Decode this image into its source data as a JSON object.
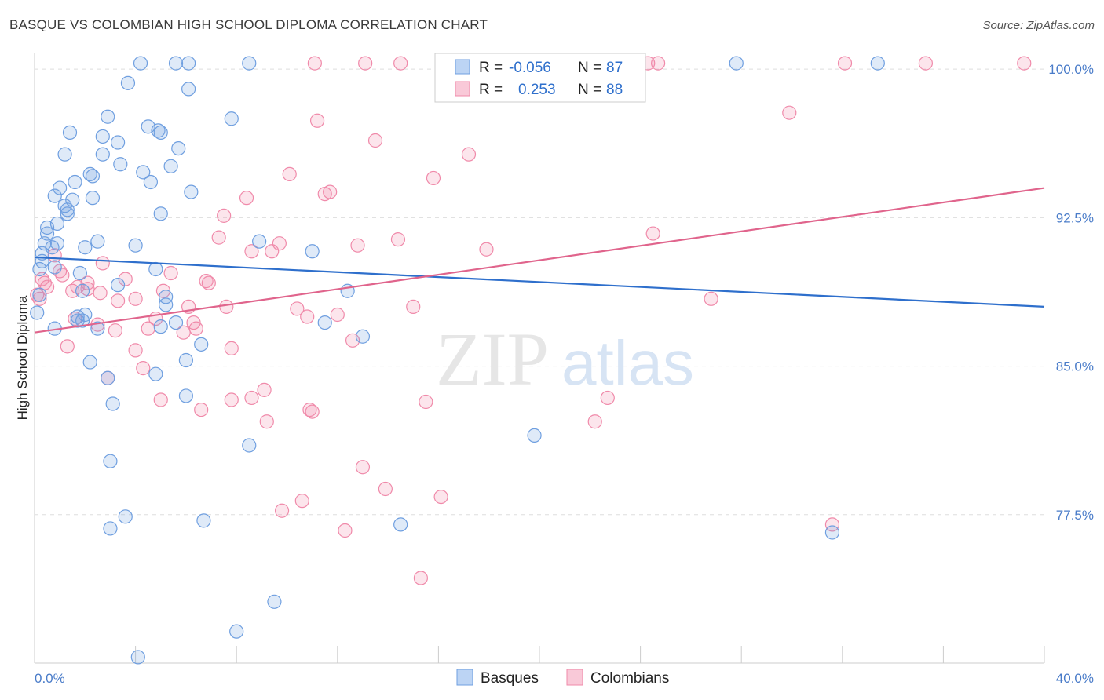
{
  "header": {
    "title": "BASQUE VS COLOMBIAN HIGH SCHOOL DIPLOMA CORRELATION CHART",
    "source": "Source: ZipAtlas.com"
  },
  "watermark": {
    "zip": "ZIP",
    "atlas": "atlas"
  },
  "legend_box": {
    "rows": [
      {
        "r_label": "R =",
        "r_value": "-0.056",
        "n_label": "N =",
        "n_value": "87"
      },
      {
        "r_label": "R =",
        "r_value": "0.253",
        "n_label": "N =",
        "n_value": "88"
      }
    ]
  },
  "chart_data": {
    "type": "scatter",
    "title": "BASQUE VS COLOMBIAN HIGH SCHOOL DIPLOMA CORRELATION CHART",
    "xlabel": "",
    "ylabel": "High School Diploma",
    "xlim": [
      0,
      40
    ],
    "ylim": [
      70,
      100.8
    ],
    "x_tick_labels": [
      {
        "value": 0,
        "label": "0.0%"
      },
      {
        "value": 40,
        "label": "40.0%"
      }
    ],
    "y_ticks": [
      {
        "value": 100.0,
        "label": "100.0%"
      },
      {
        "value": 92.5,
        "label": "92.5%"
      },
      {
        "value": 85.0,
        "label": "85.0%"
      },
      {
        "value": 77.5,
        "label": "77.5%"
      }
    ],
    "grid": "horizontal dashed",
    "legend_position": "bottom-center",
    "colors": {
      "basques": "#6f9fe0",
      "basques_line": "#2e6fcc",
      "colombians": "#f08aaa",
      "colombians_line": "#e0648c"
    },
    "series": [
      {
        "name": "Basques",
        "r": -0.056,
        "n": 87,
        "trend": {
          "x": [
            0,
            40
          ],
          "y": [
            90.5,
            88.0
          ]
        },
        "points": [
          [
            4.2,
            100.3
          ],
          [
            5.6,
            100.3
          ],
          [
            6.1,
            100.3
          ],
          [
            8.5,
            100.3
          ],
          [
            27.8,
            100.3
          ],
          [
            33.4,
            100.3
          ],
          [
            3.7,
            99.3
          ],
          [
            6.1,
            99.0
          ],
          [
            2.9,
            97.6
          ],
          [
            7.8,
            97.5
          ],
          [
            4.5,
            97.1
          ],
          [
            1.4,
            96.8
          ],
          [
            2.7,
            96.6
          ],
          [
            5.0,
            96.8
          ],
          [
            4.9,
            96.9
          ],
          [
            3.3,
            96.3
          ],
          [
            5.7,
            96.0
          ],
          [
            1.2,
            95.7
          ],
          [
            2.7,
            95.7
          ],
          [
            3.4,
            95.2
          ],
          [
            5.4,
            95.1
          ],
          [
            4.3,
            94.8
          ],
          [
            2.2,
            94.7
          ],
          [
            4.6,
            94.3
          ],
          [
            1.6,
            94.3
          ],
          [
            2.3,
            94.6
          ],
          [
            1.0,
            94.0
          ],
          [
            6.2,
            93.8
          ],
          [
            0.8,
            93.6
          ],
          [
            2.3,
            93.5
          ],
          [
            1.5,
            93.4
          ],
          [
            1.2,
            93.1
          ],
          [
            1.3,
            92.9
          ],
          [
            1.3,
            92.7
          ],
          [
            5.0,
            92.7
          ],
          [
            0.9,
            92.2
          ],
          [
            0.5,
            92.0
          ],
          [
            0.5,
            91.7
          ],
          [
            0.4,
            91.2
          ],
          [
            0.9,
            91.2
          ],
          [
            2.5,
            91.3
          ],
          [
            4.0,
            91.1
          ],
          [
            8.9,
            91.3
          ],
          [
            0.7,
            91.0
          ],
          [
            2.0,
            91.0
          ],
          [
            11.0,
            90.8
          ],
          [
            0.3,
            90.7
          ],
          [
            0.3,
            90.3
          ],
          [
            0.8,
            90.0
          ],
          [
            4.8,
            89.9
          ],
          [
            0.2,
            89.9
          ],
          [
            1.8,
            89.7
          ],
          [
            3.3,
            89.1
          ],
          [
            1.9,
            88.8
          ],
          [
            12.4,
            88.8
          ],
          [
            5.2,
            88.5
          ],
          [
            5.2,
            88.1
          ],
          [
            2.0,
            87.6
          ],
          [
            1.7,
            87.5
          ],
          [
            1.9,
            87.3
          ],
          [
            1.7,
            87.3
          ],
          [
            5.6,
            87.2
          ],
          [
            11.5,
            87.2
          ],
          [
            5.0,
            87.0
          ],
          [
            2.5,
            86.9
          ],
          [
            0.8,
            86.9
          ],
          [
            6.6,
            86.1
          ],
          [
            13.0,
            86.5
          ],
          [
            2.2,
            85.2
          ],
          [
            6.0,
            85.3
          ],
          [
            4.8,
            84.6
          ],
          [
            2.9,
            84.4
          ],
          [
            6.0,
            83.5
          ],
          [
            3.1,
            83.1
          ],
          [
            19.8,
            81.5
          ],
          [
            8.5,
            81.0
          ],
          [
            3.0,
            80.2
          ],
          [
            3.6,
            77.4
          ],
          [
            6.7,
            77.2
          ],
          [
            14.5,
            77.0
          ],
          [
            3.0,
            76.8
          ],
          [
            31.6,
            76.6
          ],
          [
            9.5,
            73.1
          ],
          [
            8.0,
            71.6
          ],
          [
            4.1,
            70.3
          ],
          [
            0.1,
            87.7
          ],
          [
            0.2,
            88.6
          ]
        ]
      },
      {
        "name": "Colombians",
        "r": 0.253,
        "n": 88,
        "trend": {
          "x": [
            0,
            40
          ],
          "y": [
            86.7,
            94.0
          ]
        },
        "points": [
          [
            11.1,
            100.3
          ],
          [
            13.1,
            100.3
          ],
          [
            14.5,
            100.3
          ],
          [
            18.7,
            100.3
          ],
          [
            24.3,
            100.3
          ],
          [
            24.7,
            100.3
          ],
          [
            32.1,
            100.3
          ],
          [
            35.3,
            100.3
          ],
          [
            39.2,
            100.3
          ],
          [
            29.9,
            97.8
          ],
          [
            11.2,
            97.4
          ],
          [
            13.5,
            96.4
          ],
          [
            17.2,
            95.7
          ],
          [
            10.1,
            94.7
          ],
          [
            15.8,
            94.5
          ],
          [
            11.7,
            93.8
          ],
          [
            11.5,
            93.7
          ],
          [
            8.4,
            93.5
          ],
          [
            7.5,
            92.6
          ],
          [
            7.3,
            91.5
          ],
          [
            14.4,
            91.4
          ],
          [
            24.5,
            91.7
          ],
          [
            9.7,
            91.2
          ],
          [
            12.8,
            91.1
          ],
          [
            9.4,
            90.8
          ],
          [
            8.6,
            90.8
          ],
          [
            17.9,
            90.9
          ],
          [
            0.8,
            90.6
          ],
          [
            2.7,
            90.2
          ],
          [
            1.0,
            89.8
          ],
          [
            1.1,
            89.6
          ],
          [
            5.4,
            89.7
          ],
          [
            3.6,
            89.4
          ],
          [
            6.9,
            89.2
          ],
          [
            0.5,
            89.0
          ],
          [
            2.1,
            89.2
          ],
          [
            5.1,
            88.8
          ],
          [
            2.1,
            88.9
          ],
          [
            1.5,
            88.8
          ],
          [
            0.2,
            88.4
          ],
          [
            3.3,
            88.3
          ],
          [
            4.0,
            88.4
          ],
          [
            6.1,
            88.0
          ],
          [
            7.6,
            88.0
          ],
          [
            10.4,
            87.9
          ],
          [
            15.0,
            88.0
          ],
          [
            26.8,
            88.4
          ],
          [
            12.0,
            87.6
          ],
          [
            4.8,
            87.4
          ],
          [
            6.3,
            87.2
          ],
          [
            10.8,
            87.5
          ],
          [
            1.6,
            87.4
          ],
          [
            2.5,
            87.1
          ],
          [
            3.2,
            86.8
          ],
          [
            4.5,
            86.9
          ],
          [
            5.9,
            86.7
          ],
          [
            6.4,
            86.9
          ],
          [
            12.6,
            86.3
          ],
          [
            1.3,
            86.0
          ],
          [
            4.0,
            85.8
          ],
          [
            7.8,
            85.9
          ],
          [
            4.3,
            84.9
          ],
          [
            2.9,
            84.4
          ],
          [
            9.1,
            83.8
          ],
          [
            5.0,
            83.3
          ],
          [
            7.8,
            83.3
          ],
          [
            8.6,
            83.4
          ],
          [
            15.5,
            83.2
          ],
          [
            22.7,
            83.4
          ],
          [
            6.6,
            82.8
          ],
          [
            10.9,
            82.8
          ],
          [
            11.0,
            82.7
          ],
          [
            9.2,
            82.2
          ],
          [
            22.2,
            82.2
          ],
          [
            13.0,
            79.9
          ],
          [
            13.9,
            78.8
          ],
          [
            10.6,
            78.2
          ],
          [
            16.1,
            78.4
          ],
          [
            9.8,
            77.7
          ],
          [
            12.3,
            76.7
          ],
          [
            31.6,
            77.0
          ],
          [
            15.3,
            74.3
          ],
          [
            0.1,
            88.6
          ],
          [
            0.4,
            89.2
          ],
          [
            0.3,
            89.4
          ],
          [
            1.7,
            89.0
          ],
          [
            6.8,
            89.3
          ],
          [
            2.6,
            88.7
          ]
        ]
      }
    ]
  }
}
